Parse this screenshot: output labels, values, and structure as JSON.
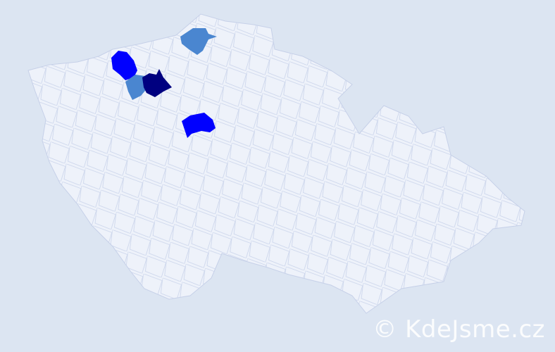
{
  "map": {
    "colors": {
      "background": "#dce5f2",
      "region_default": "#eef2fa",
      "region_border": "#c6d0e8",
      "level_high": "#000080",
      "level_mid": "#0000ff",
      "level_low": "#4a86d0"
    },
    "highlighted_regions": [
      {
        "level": "mid",
        "name": "region-northwest-blue"
      },
      {
        "level": "high",
        "name": "region-north-navy"
      },
      {
        "level": "low",
        "name": "region-north-lightblue"
      },
      {
        "level": "low",
        "name": "region-northeast-lightblue"
      },
      {
        "level": "mid",
        "name": "region-central-blue"
      }
    ]
  },
  "watermark": "© KdeJsme.cz"
}
